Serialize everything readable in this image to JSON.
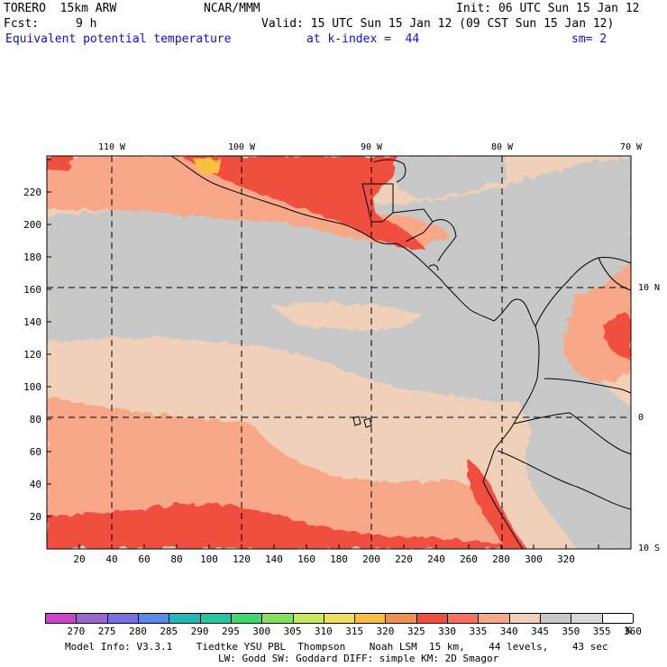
{
  "header": {
    "model": "TORERO  15km ARW",
    "center": "NCAR/MMM",
    "init": "Init: 06 UTC Sun 15 Jan 12",
    "fcst_label": "Fcst:",
    "fcst_value": "9 h",
    "valid": "Valid: 15 UTC Sun 15 Jan 12 (09 CST Sun 15 Jan 12)",
    "field": "Equivalent potential temperature",
    "level": "at k-index =  44",
    "smoothing": "sm= 2"
  },
  "map": {
    "top_lon_labels": [
      "110 W",
      "100 W",
      "90 W",
      "80 W",
      "70 W"
    ],
    "right_lat_labels": [
      "10 N",
      "0",
      "10 S"
    ],
    "x_ticks": [
      "20",
      "40",
      "60",
      "80",
      "100",
      "120",
      "140",
      "160",
      "180",
      "200",
      "220",
      "240",
      "260",
      "280",
      "300",
      "320"
    ],
    "y_ticks": [
      "20",
      "40",
      "60",
      "80",
      "100",
      "120",
      "140",
      "160",
      "180",
      "200",
      "220"
    ]
  },
  "colorbar": {
    "unit": "K",
    "labels": [
      "270",
      "275",
      "280",
      "285",
      "290",
      "295",
      "300",
      "305",
      "310",
      "315",
      "320",
      "325",
      "330",
      "335",
      "340",
      "345",
      "350",
      "355",
      "360"
    ],
    "colors": [
      "#cc44cc",
      "#9966cc",
      "#7a70e0",
      "#5a8ae6",
      "#22b8b8",
      "#26c8a0",
      "#3cd870",
      "#88e060",
      "#c8e860",
      "#f0e060",
      "#f8c040",
      "#f09050",
      "#f05040",
      "#f87060",
      "#f8a888",
      "#f0d0b8",
      "#c8c8c8",
      "#d8d8d8",
      "#ffffff"
    ]
  },
  "footer": {
    "line1": "Model Info: V3.3.1    Tiedtke YSU PBL  Thompson    Noah LSM  15 km,    44 levels,    43 sec",
    "line2": "LW: Godd SW: Goddard DIFF: simple KM: 2D Smagor"
  }
}
